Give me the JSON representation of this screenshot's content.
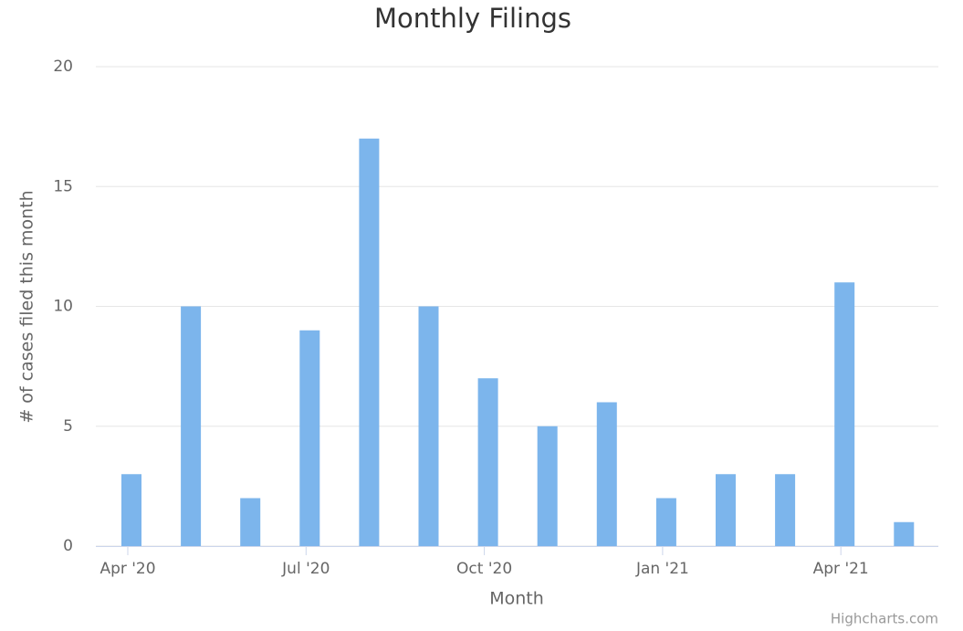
{
  "chart_data": {
    "type": "bar",
    "title": "Monthly Filings",
    "x_label": "Month",
    "y_label": "# of cases filed this month",
    "x": [
      "2020-04",
      "2020-05",
      "2020-06",
      "2020-07",
      "2020-08",
      "2020-09",
      "2020-10",
      "2020-11",
      "2020-12",
      "2021-01",
      "2021-02",
      "2021-03",
      "2021-04",
      "2021-05"
    ],
    "values": [
      3,
      10,
      2,
      9,
      17,
      10,
      7,
      5,
      6,
      2,
      3,
      3,
      11,
      1
    ],
    "color": "#7cb5ec",
    "xticks": [
      {
        "value": "2020-04",
        "label": "Apr '20"
      },
      {
        "value": "2020-07",
        "label": "Jul '20"
      },
      {
        "value": "2020-10",
        "label": "Oct '20"
      },
      {
        "value": "2021-01",
        "label": "Jan '21"
      },
      {
        "value": "2021-04",
        "label": "Apr '21"
      }
    ],
    "ylim": [
      0,
      20
    ],
    "yticks": [
      0,
      5,
      10,
      15,
      20
    ],
    "grid": true,
    "credits": "Highcharts.com"
  }
}
